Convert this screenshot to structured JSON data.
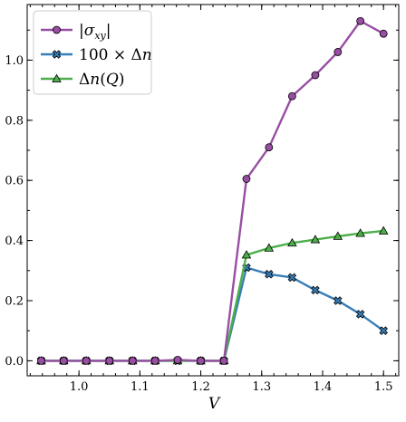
{
  "chart_data": {
    "type": "line",
    "xlabel": "V",
    "ylabel": "",
    "xlim": [
      0.915,
      1.525
    ],
    "ylim": [
      -0.05,
      1.185
    ],
    "xticks": [
      1.0,
      1.1,
      1.2,
      1.3,
      1.4,
      1.5
    ],
    "yticks": [
      0.0,
      0.2,
      0.4,
      0.6,
      0.8,
      1.0
    ],
    "xtick_labels": [
      "1.0",
      "1.1",
      "1.2",
      "1.3",
      "1.4",
      "1.5"
    ],
    "ytick_labels": [
      "0.0",
      "0.2",
      "0.4",
      "0.6",
      "0.8",
      "1.0"
    ],
    "grid": false,
    "legend_position": "top-left",
    "x": [
      0.938,
      0.975,
      1.012,
      1.05,
      1.088,
      1.125,
      1.162,
      1.2,
      1.238,
      1.275,
      1.312,
      1.35,
      1.388,
      1.425,
      1.462,
      1.5
    ],
    "series": [
      {
        "name": "|σ_xy|",
        "color": "#984ea3",
        "marker": "circle",
        "values": [
          0.0,
          0.0,
          0.0,
          0.0,
          0.0,
          0.0,
          0.003,
          0.0,
          0.0,
          0.605,
          0.71,
          0.88,
          0.95,
          1.027,
          1.13,
          1.088
        ]
      },
      {
        "name": "100 × Δn",
        "color": "#377eb8",
        "marker": "x",
        "values": [
          0.0,
          0.0,
          0.0,
          0.0,
          0.0,
          0.0,
          0.0,
          0.0,
          0.0,
          0.31,
          0.288,
          0.277,
          0.235,
          0.2,
          0.155,
          0.1
        ]
      },
      {
        "name": "Δn(Q)",
        "color": "#4daf4a",
        "marker": "triangle",
        "values": [
          0.0,
          0.0,
          0.0,
          0.0,
          0.0,
          0.0,
          0.0,
          0.0,
          0.0,
          0.352,
          0.375,
          0.392,
          0.403,
          0.414,
          0.424,
          0.432
        ]
      }
    ]
  }
}
